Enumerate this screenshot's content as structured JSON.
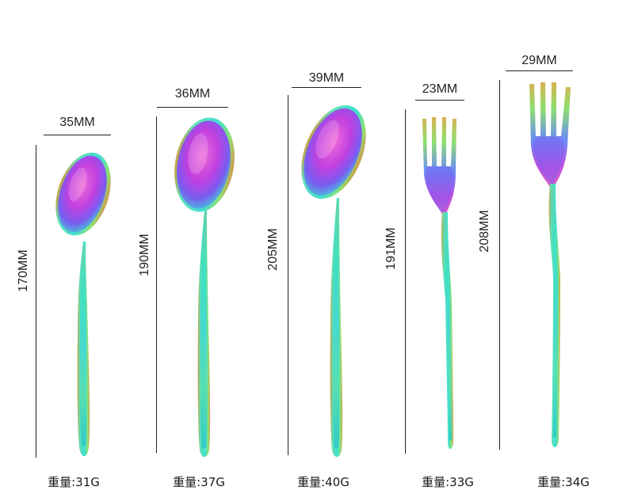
{
  "items": [
    {
      "width": "35MM",
      "length": "170MM",
      "weight": "重量:31G",
      "type": "spoon"
    },
    {
      "width": "36MM",
      "length": "190MM",
      "weight": "重量:37G",
      "type": "spoon"
    },
    {
      "width": "39MM",
      "length": "205MM",
      "weight": "重量:40G",
      "type": "spoon"
    },
    {
      "width": "23MM",
      "length": "191MM",
      "weight": "重量:33G",
      "type": "fork"
    },
    {
      "width": "29MM",
      "length": "208MM",
      "weight": "重量:34G",
      "type": "fork"
    }
  ],
  "colors": {
    "rainbow_pink": "#e040c8",
    "rainbow_purple": "#7a5cf0",
    "rainbow_teal": "#3fe0c0",
    "rainbow_green": "#8ee070",
    "rainbow_gold": "#d8b050",
    "line": "#222222"
  }
}
